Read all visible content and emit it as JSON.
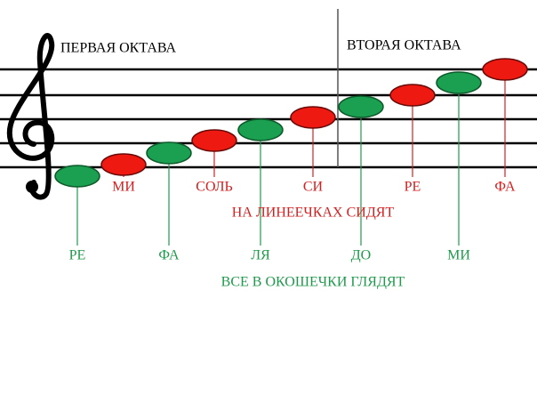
{
  "octaves": [
    "ПЕРВАЯ ОКТАВА",
    "ВТОРАЯ ОКТАВА"
  ],
  "notes": [
    "РЕ",
    "МИ",
    "ФА",
    "СОЛЬ",
    "ЛЯ",
    "СИ",
    "ДО",
    "РЕ",
    "МИ",
    "ФА"
  ],
  "captions": [
    "НА ЛИНЕЕЧКАХ СИДЯТ",
    "ВСЕ В ОКОШЕЧКИ ГЛЯДЯТ"
  ]
}
